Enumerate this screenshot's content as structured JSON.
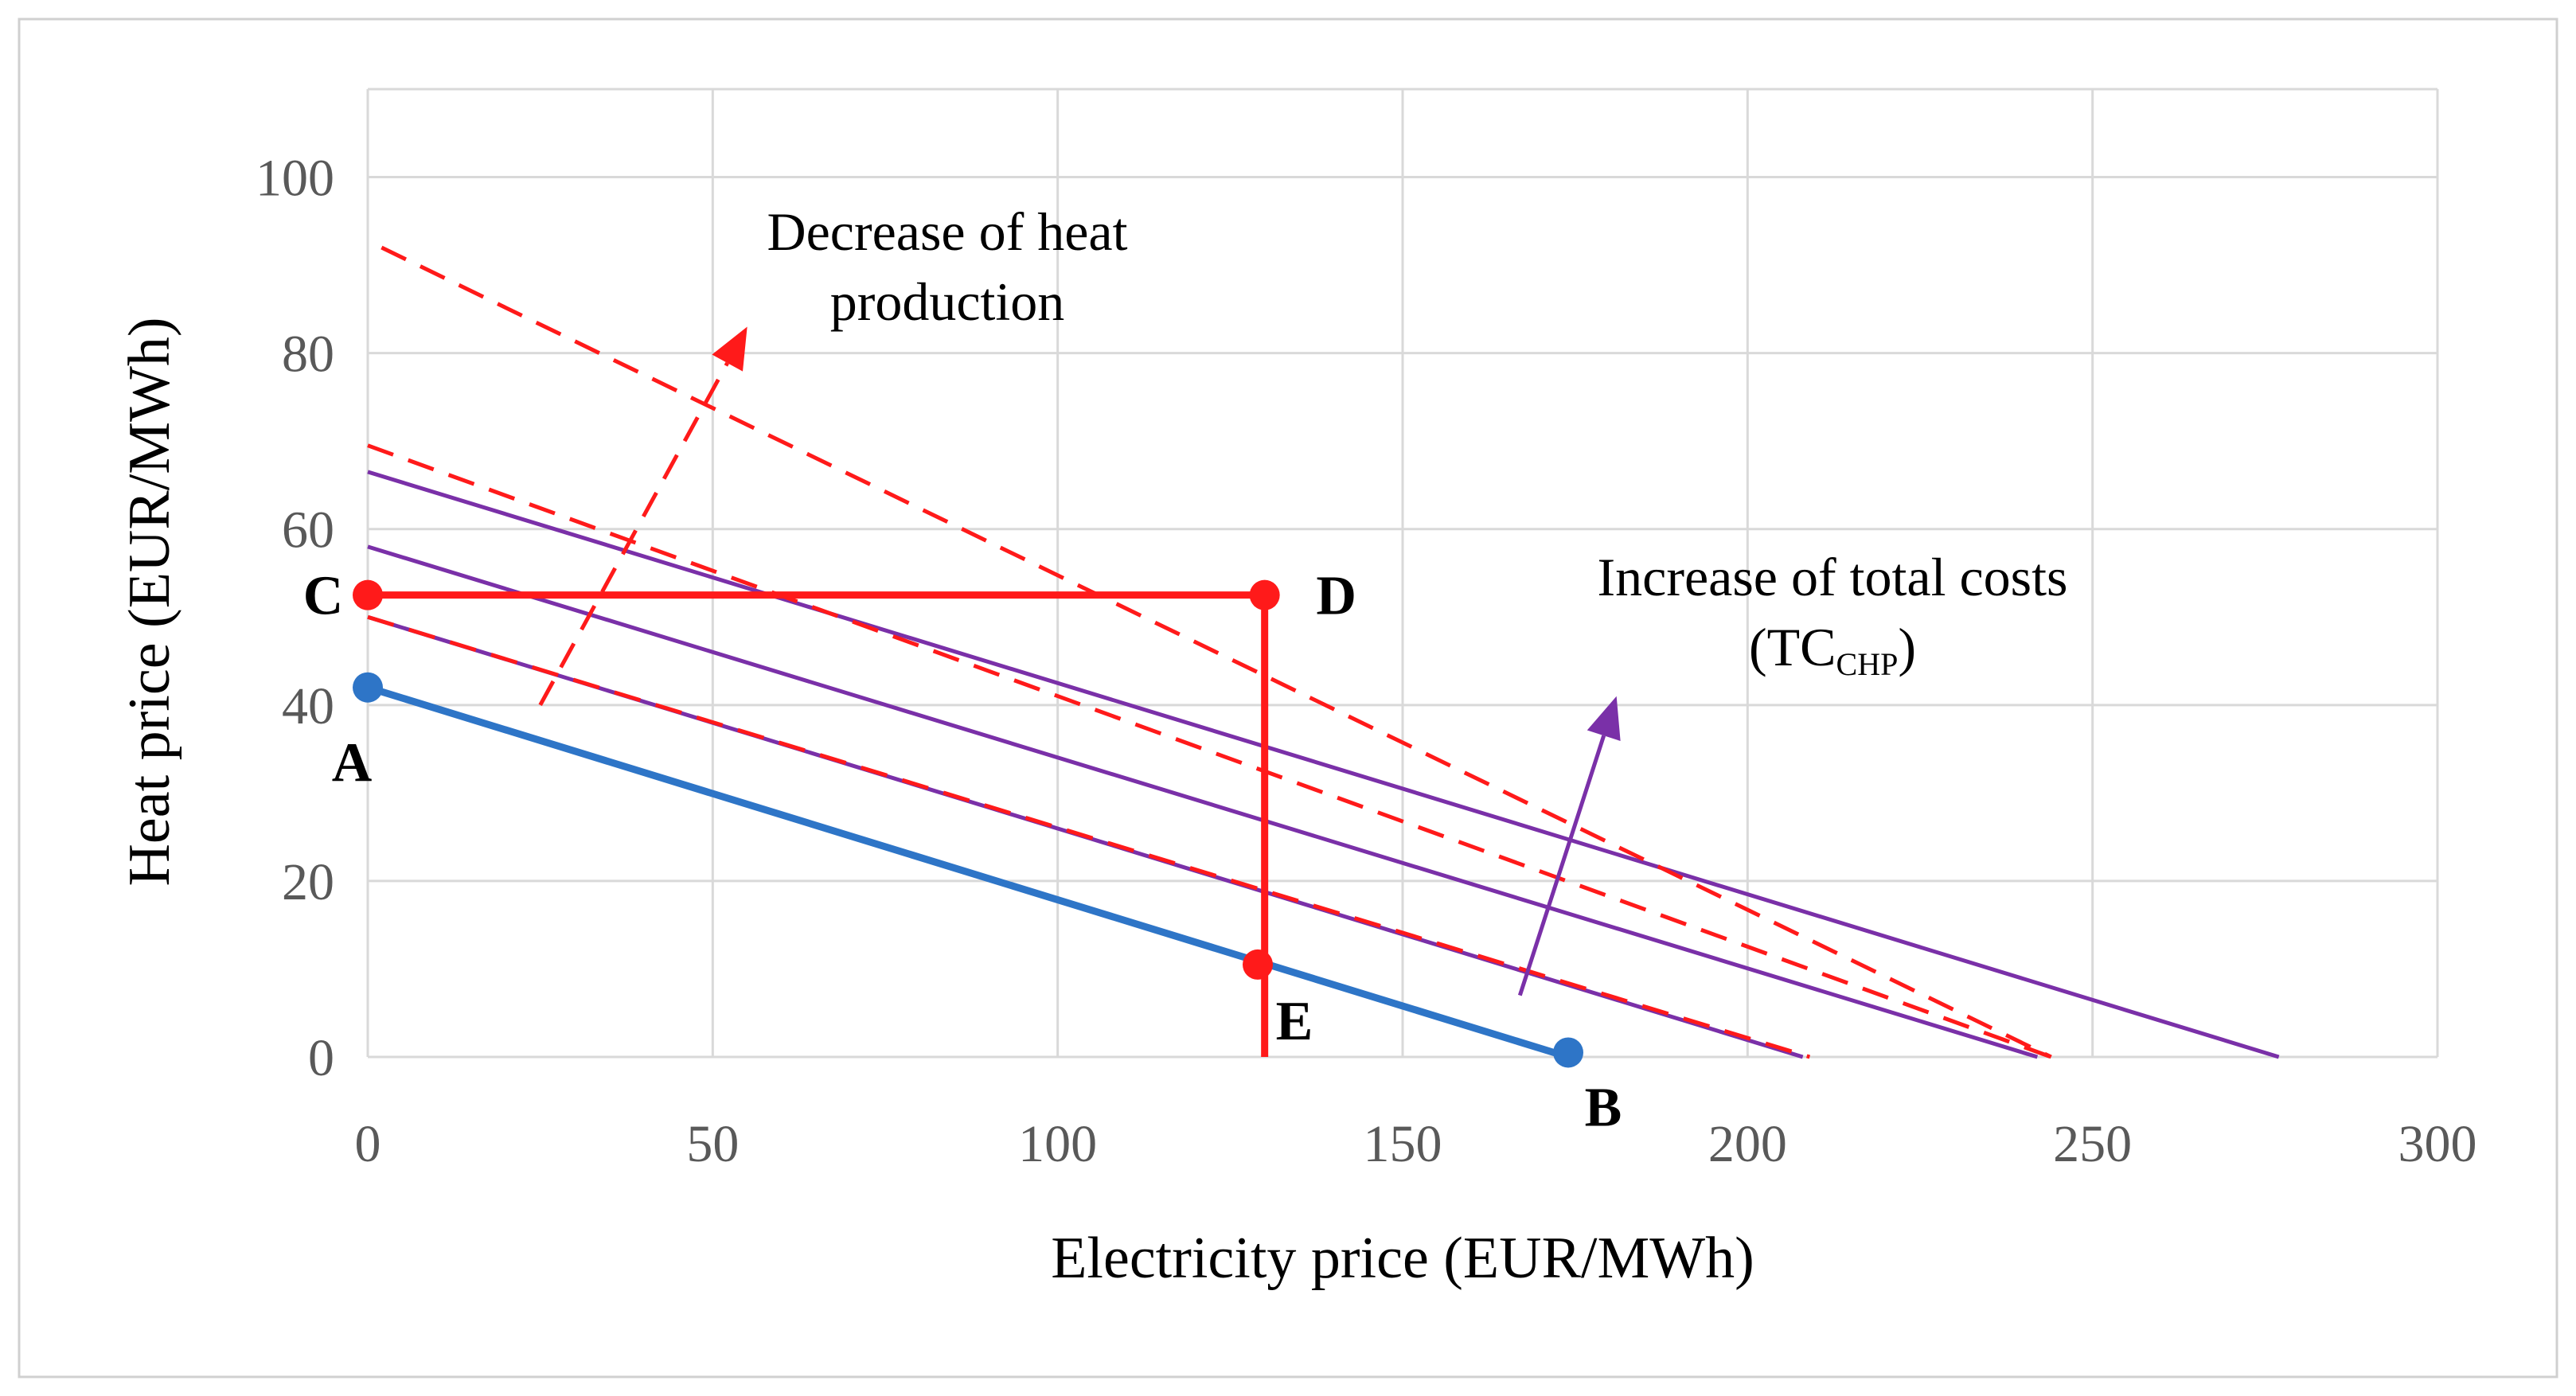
{
  "chart_data": {
    "type": "line",
    "title": "",
    "xlabel": "Electricity price (EUR/MWh)",
    "ylabel": "Heat price (EUR/MWh)",
    "xlim": [
      0,
      300
    ],
    "ylim": [
      0,
      110
    ],
    "x_ticks": [
      "0",
      "50",
      "100",
      "150",
      "200",
      "250",
      "300"
    ],
    "y_ticks": [
      "0",
      "20",
      "40",
      "60",
      "80",
      "100"
    ],
    "grid": true,
    "colors": {
      "blue": "#2e75c7",
      "red": "#ff1a1a",
      "purple": "#7a30a8",
      "grid": "#d9d9d9",
      "frame": "#d0d0d0"
    },
    "series": [
      {
        "name": "A-B line",
        "style": "solid-blue",
        "x": [
          0,
          174
        ],
        "y": [
          42,
          0
        ]
      },
      {
        "name": "purple 1",
        "style": "solid-purple",
        "x": [
          0,
          208
        ],
        "y": [
          50,
          0
        ]
      },
      {
        "name": "purple 2",
        "style": "solid-purple",
        "x": [
          0,
          242
        ],
        "y": [
          58,
          0
        ]
      },
      {
        "name": "purple 3",
        "style": "solid-purple",
        "x": [
          0,
          277
        ],
        "y": [
          66.5,
          0
        ]
      },
      {
        "name": "red dashed 1",
        "style": "dashed-red",
        "x": [
          0,
          209
        ],
        "y": [
          50,
          0
        ]
      },
      {
        "name": "red dashed 2",
        "style": "dashed-red",
        "x": [
          0,
          244
        ],
        "y": [
          69.5,
          0
        ]
      },
      {
        "name": "red dashed 3",
        "style": "dashed-red",
        "x": [
          2,
          244
        ],
        "y": [
          92,
          0
        ]
      },
      {
        "name": "C-D line",
        "style": "solid-red",
        "x": [
          0,
          130
        ],
        "y": [
          52.5,
          52.5
        ]
      },
      {
        "name": "D-E line",
        "style": "solid-red",
        "x": [
          130,
          130
        ],
        "y": [
          52.5,
          0
        ]
      }
    ],
    "points": [
      {
        "label": "A",
        "x": 0,
        "y": 42,
        "color": "blue"
      },
      {
        "label": "B",
        "x": 174,
        "y": 0.5,
        "color": "blue"
      },
      {
        "label": "C",
        "x": 0,
        "y": 52.5,
        "color": "red"
      },
      {
        "label": "D",
        "x": 130,
        "y": 52.5,
        "color": "red"
      },
      {
        "label": "E",
        "x": 129,
        "y": 10.5,
        "color": "red"
      }
    ],
    "arrows": [
      {
        "name": "heat-production-arrow",
        "style": "dashed-red",
        "from": [
          25,
          40
        ],
        "to": [
          55,
          83
        ]
      },
      {
        "name": "total-costs-arrow",
        "style": "solid-purple",
        "from": [
          167,
          7
        ],
        "to": [
          181,
          41
        ]
      }
    ],
    "annotations": {
      "heat_line1": "Decrease of heat",
      "heat_line2": "production",
      "costs_line1": "Increase of total costs",
      "costs_open": "(TC",
      "costs_sub": "CHP",
      "costs_close": ")"
    }
  }
}
